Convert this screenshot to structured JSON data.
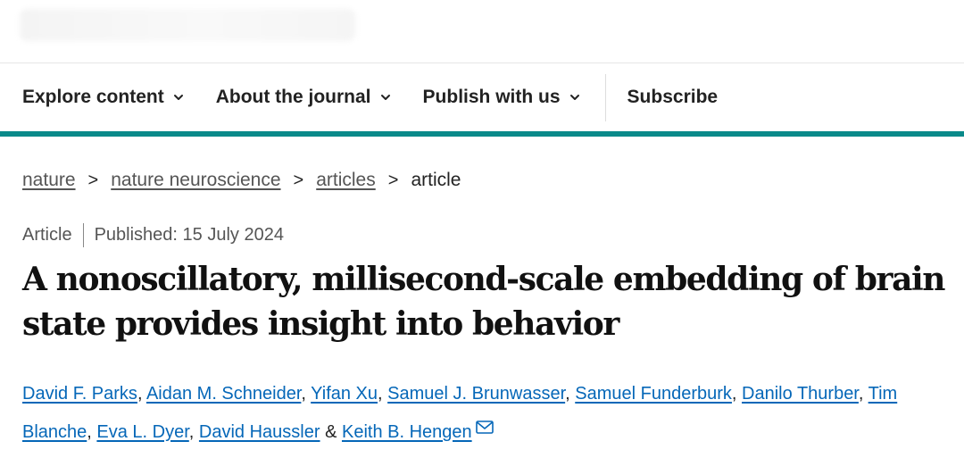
{
  "nav": {
    "items": [
      {
        "label": "Explore content"
      },
      {
        "label": "About the journal"
      },
      {
        "label": "Publish with us"
      }
    ],
    "subscribe_label": "Subscribe"
  },
  "breadcrumb": {
    "items": [
      "nature",
      "nature neuroscience",
      "articles"
    ],
    "current": "article",
    "separator": ">"
  },
  "article": {
    "type": "Article",
    "published": "Published: 15 July 2024",
    "title_line1": "A nonoscillatory, millisecond-scale embedding of brain",
    "title_line2": "state provides insight into behavior",
    "authors": [
      "David F. Parks",
      "Aidan M. Schneider",
      "Yifan Xu",
      "Samuel J. Brunwasser",
      "Samuel Funderburk",
      "Danilo Thurber",
      "Tim Blanche",
      "Eva L. Dyer",
      "David Haussler",
      "Keith B. Hengen"
    ],
    "author_separator": ", ",
    "last_author_joiner": " & "
  },
  "icons": {
    "nav_chevron": "chevron-down-icon",
    "corresponding_author": "envelope-icon"
  },
  "colors": {
    "accent_teal": "#0a8a8a",
    "author_link": "#0567b8",
    "text_dark": "#222222",
    "text_muted": "#555555"
  }
}
